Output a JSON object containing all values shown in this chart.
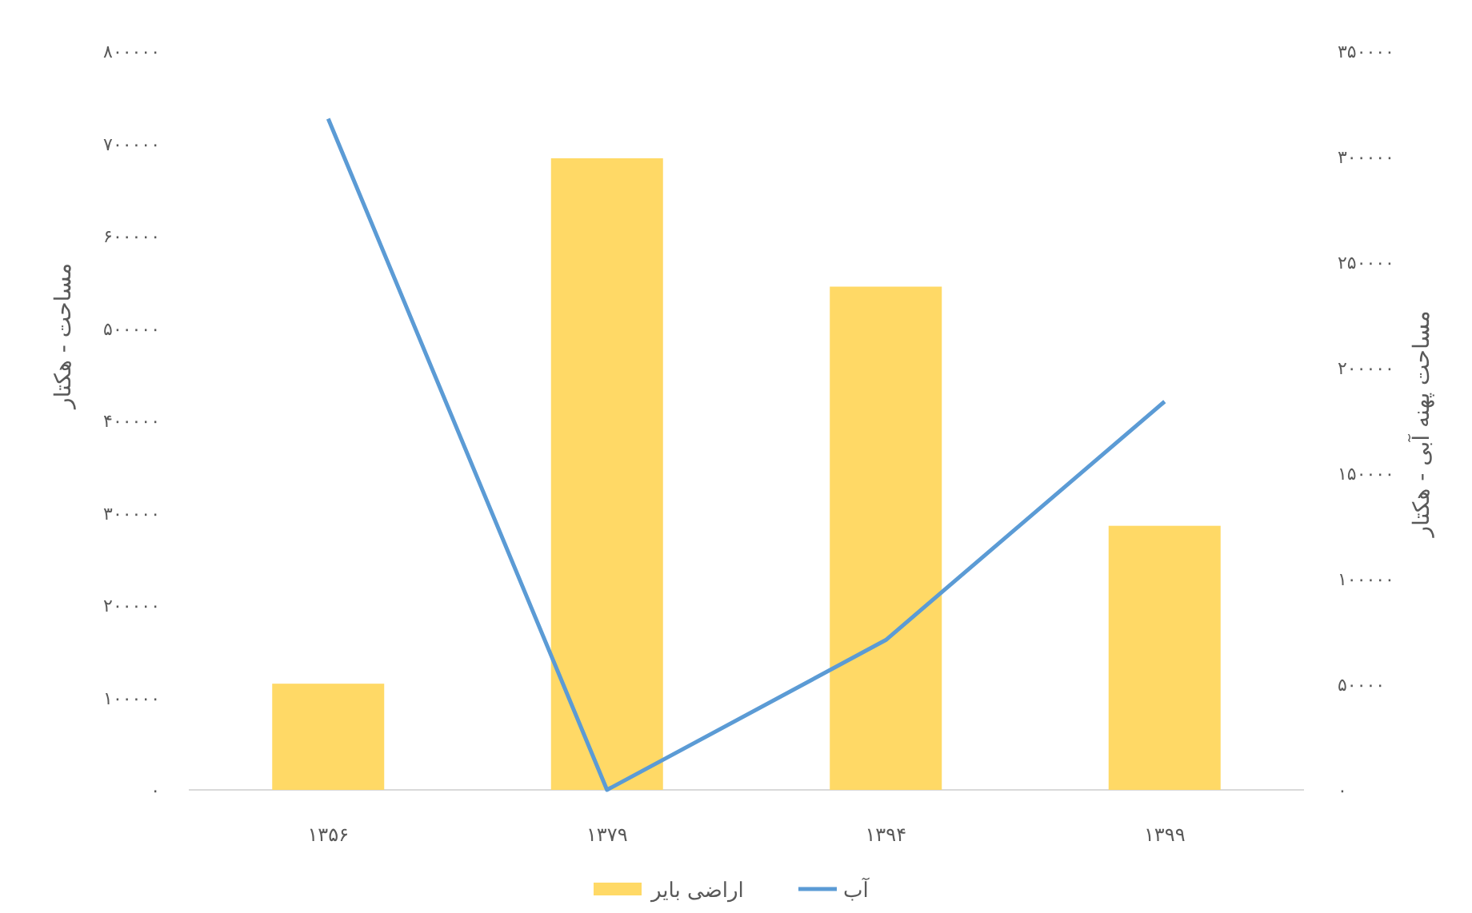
{
  "chart_data": {
    "type": "bar",
    "categories": [
      "۱۳۵۶",
      "۱۳۷۹",
      "۱۳۹۴",
      "۱۳۹۹"
    ],
    "ylabel": "مساحت - هکتار",
    "y2label": "مساحت پهنه آبی - هکتار",
    "ylim": [
      0,
      800000
    ],
    "yticks": [
      {
        "value": 0,
        "label": "۰"
      },
      {
        "value": 100000,
        "label": "۱۰۰۰۰۰"
      },
      {
        "value": 200000,
        "label": "۲۰۰۰۰۰"
      },
      {
        "value": 300000,
        "label": "۳۰۰۰۰۰"
      },
      {
        "value": 400000,
        "label": "۴۰۰۰۰۰"
      },
      {
        "value": 500000,
        "label": "۵۰۰۰۰۰"
      },
      {
        "value": 600000,
        "label": "۶۰۰۰۰۰"
      },
      {
        "value": 700000,
        "label": "۷۰۰۰۰۰"
      },
      {
        "value": 800000,
        "label": "۸۰۰۰۰۰"
      }
    ],
    "y2lim": [
      0,
      350000
    ],
    "y2ticks": [
      {
        "value": 0,
        "label": "۰"
      },
      {
        "value": 50000,
        "label": "۵۰۰۰۰"
      },
      {
        "value": 100000,
        "label": "۱۰۰۰۰۰"
      },
      {
        "value": 150000,
        "label": "۱۵۰۰۰۰"
      },
      {
        "value": 200000,
        "label": "۲۰۰۰۰۰"
      },
      {
        "value": 250000,
        "label": "۲۵۰۰۰۰"
      },
      {
        "value": 300000,
        "label": "۳۰۰۰۰۰"
      },
      {
        "value": 350000,
        "label": "۳۵۰۰۰۰"
      }
    ],
    "legend": "bottom",
    "series": [
      {
        "name": "اراضی بایر",
        "color": "#ffd966",
        "values": [
          115000,
          684000,
          545000,
          286000
        ]
      },
      {
        "name": "آب",
        "type": "line",
        "axis": "y2",
        "color": "#5b9bd5",
        "values": [
          318000,
          0,
          71000,
          184000
        ]
      }
    ]
  }
}
